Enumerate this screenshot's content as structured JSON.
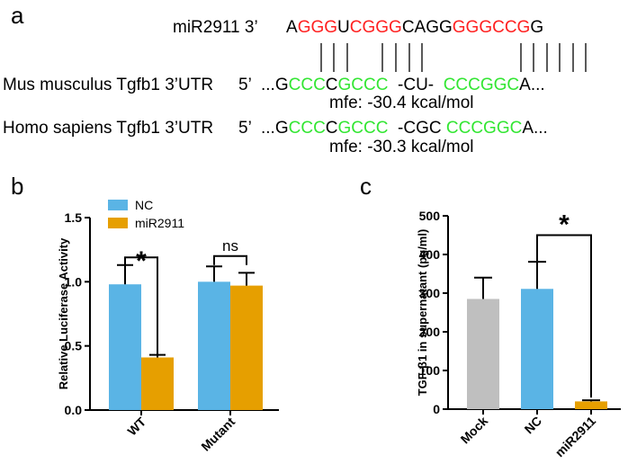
{
  "panel_a": {
    "letter": "a",
    "mir": {
      "prefix": "miR2911 3’",
      "segments": [
        {
          "t": "A",
          "c": "k"
        },
        {
          "t": "GGG",
          "c": "r"
        },
        {
          "t": "U",
          "c": "k"
        },
        {
          "t": "CGGG",
          "c": "r"
        },
        {
          "t": "CAGG",
          "c": "k"
        },
        {
          "t": "GGGCCG",
          "c": "r"
        },
        {
          "t": "G",
          "c": "k"
        }
      ]
    },
    "mouse": {
      "prefix": "Mus musculus Tgfb1 3’UTR",
      "five": "5’",
      "segments": [
        {
          "t": "...G",
          "c": "k"
        },
        {
          "t": "CCC",
          "c": "g"
        },
        {
          "t": "C",
          "c": "k"
        },
        {
          "t": "GCCC",
          "c": "g"
        },
        {
          "t": "  -CU-  ",
          "c": "k"
        },
        {
          "t": "CCCGGC",
          "c": "g"
        },
        {
          "t": "A...",
          "c": "k"
        }
      ],
      "mfe": "mfe: -30.4 kcal/mol"
    },
    "human": {
      "prefix": "Homo sapiens Tgfb1 3’UTR",
      "five": "5’",
      "segments": [
        {
          "t": "...G",
          "c": "k"
        },
        {
          "t": "CCC",
          "c": "g"
        },
        {
          "t": "C",
          "c": "k"
        },
        {
          "t": "GCCC",
          "c": "g"
        },
        {
          "t": "  -CGC ",
          "c": "k"
        },
        {
          "t": "CCCGGC",
          "c": "g"
        },
        {
          "t": "A...",
          "c": "k"
        }
      ],
      "mfe": "mfe: -30.3 kcal/mol"
    }
  },
  "colors": {
    "nc": "#5ab4e5",
    "mir2911": "#e69f00",
    "mock": "#bfbfbf",
    "red": "#ff2020",
    "green": "#33e633"
  },
  "chart_data": [
    {
      "panel": "b",
      "type": "bar",
      "ylabel": "Relative Luciferase Activity",
      "ylim": [
        0,
        1.5
      ],
      "yticks": [
        "0.0",
        "0.5",
        "1.0",
        "1.5"
      ],
      "categories": [
        "WT",
        "Mutant"
      ],
      "series": [
        {
          "name": "NC",
          "values": [
            0.98,
            1.0
          ],
          "errors": [
            0.15,
            0.12
          ]
        },
        {
          "name": "miR2911",
          "values": [
            0.41,
            0.97
          ],
          "errors": [
            0.02,
            0.1
          ]
        }
      ],
      "legend": "top-left",
      "annotations": [
        {
          "label": "*",
          "category": "WT"
        },
        {
          "label": "ns",
          "category": "Mutant"
        }
      ]
    },
    {
      "panel": "c",
      "type": "bar",
      "ylabel": "TGF-β1 in supernatant (pg/ml)",
      "ylim": [
        0,
        500
      ],
      "yticks": [
        "0",
        "100",
        "200",
        "300",
        "400",
        "500"
      ],
      "categories": [
        "Mock",
        "NC",
        "miR2911"
      ],
      "values": [
        285,
        311,
        20
      ],
      "errors": [
        55,
        70,
        3
      ],
      "annotations": [
        {
          "label": "*",
          "between": [
            "NC",
            "miR2911"
          ]
        }
      ]
    }
  ]
}
